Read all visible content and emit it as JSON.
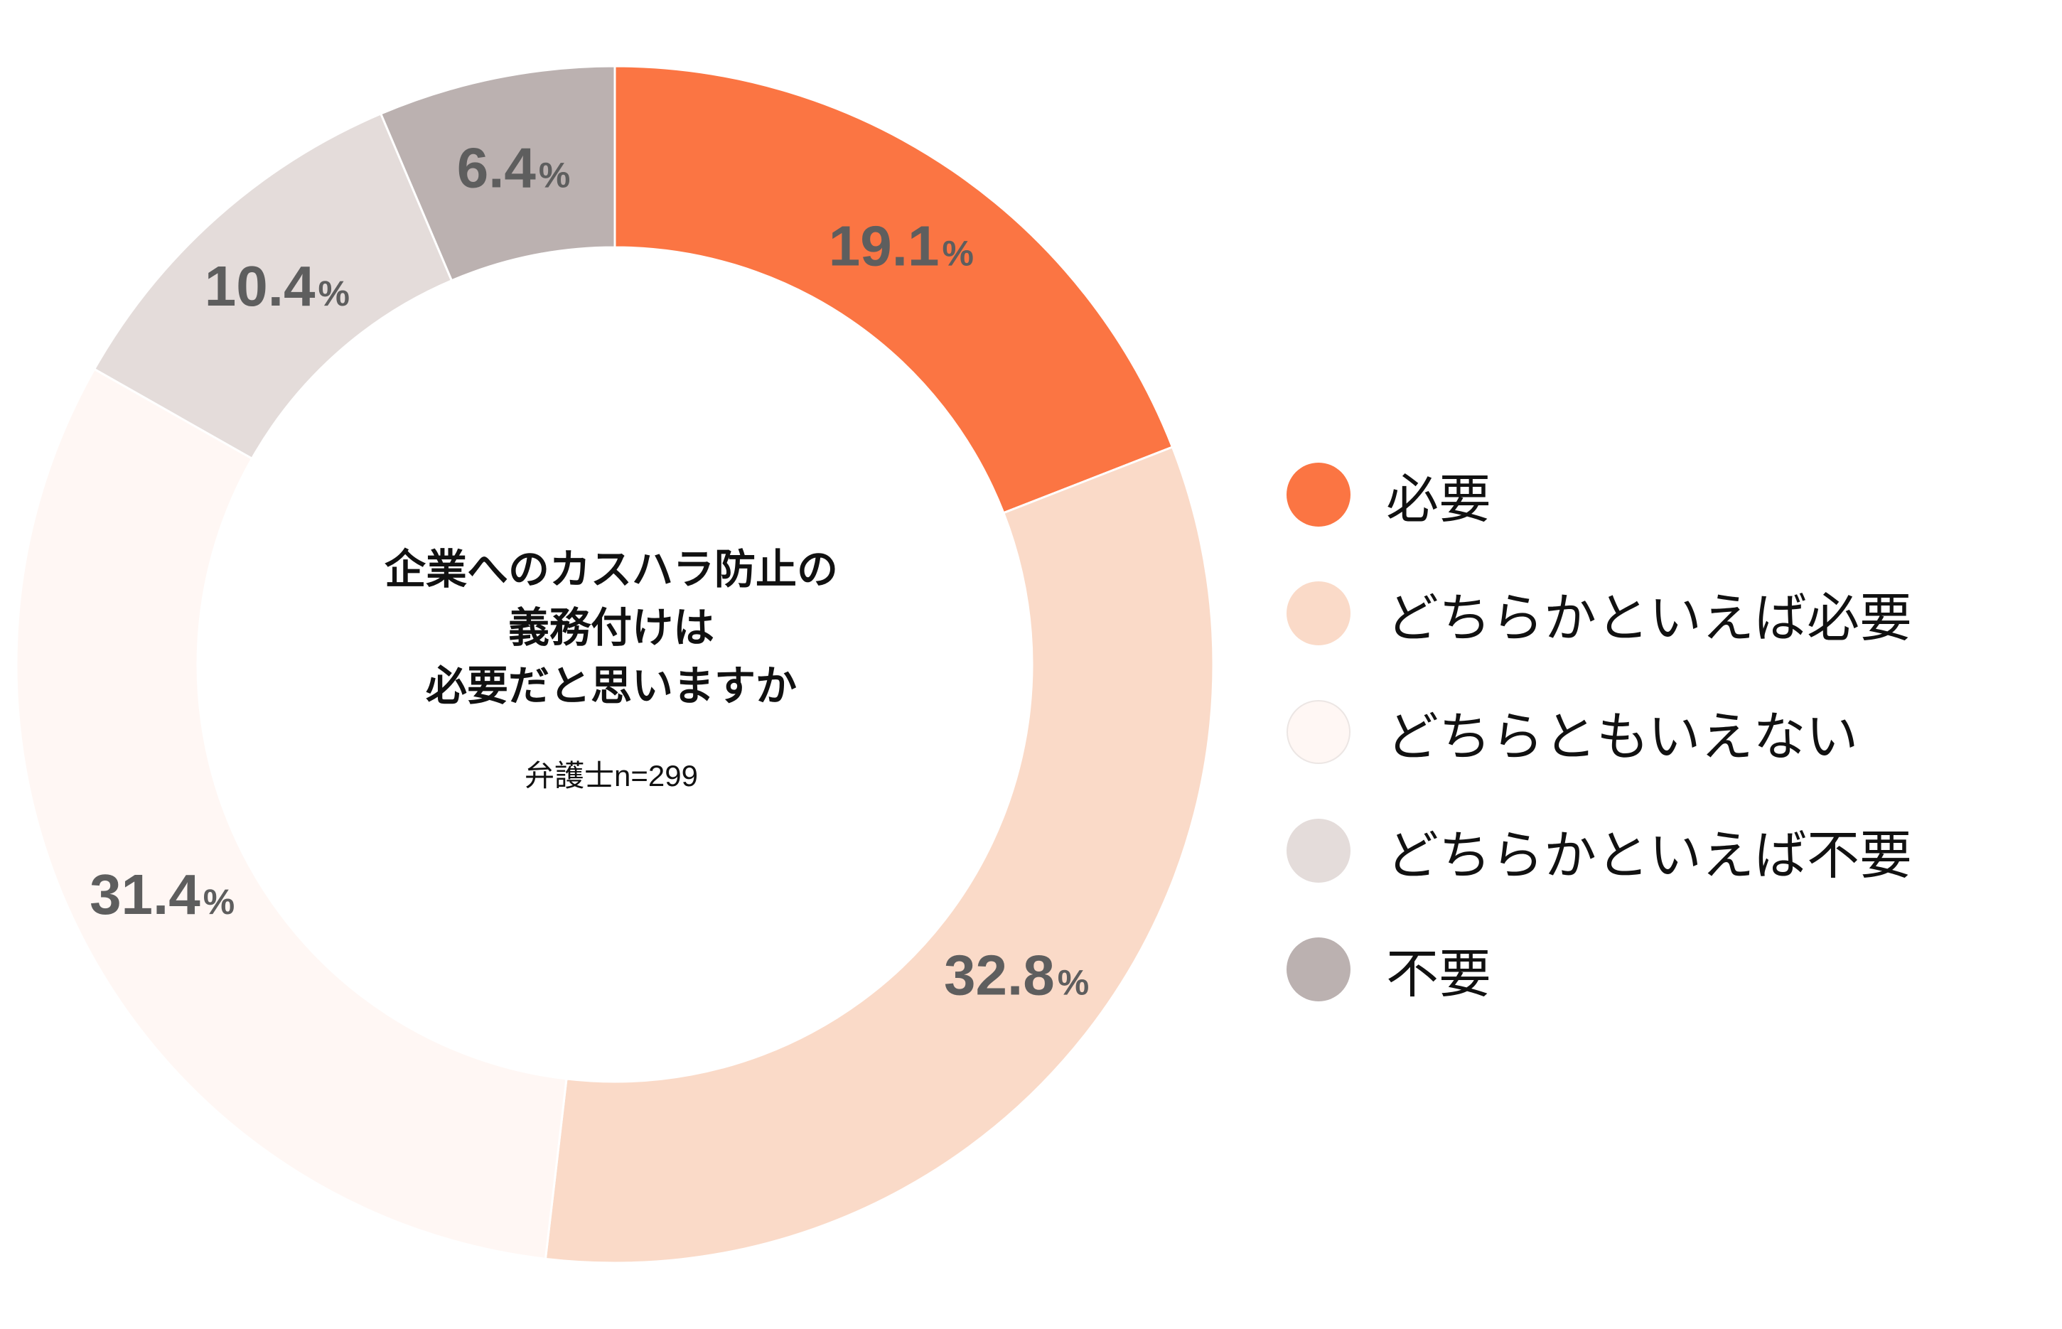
{
  "chart_data": {
    "type": "pie",
    "center_title": "企業へのカスハラ防止の\n義務付けは\n必要だと思いますか",
    "center_sample": "弁護士n=299",
    "unit": "%",
    "categories": [
      "必要",
      "どちらかといえば必要",
      "どちらともいえない",
      "どちらかといえば不要",
      "不要"
    ],
    "values": [
      19.1,
      32.8,
      31.4,
      10.4,
      6.4
    ],
    "data_labels": [
      "19.1",
      "32.8",
      "31.4",
      "10.4",
      "6.4"
    ],
    "colors": [
      "#fb7543",
      "#fadac8",
      "#fff7f4",
      "#e4dcda",
      "#bbb1b0"
    ],
    "legend_position": "right"
  }
}
